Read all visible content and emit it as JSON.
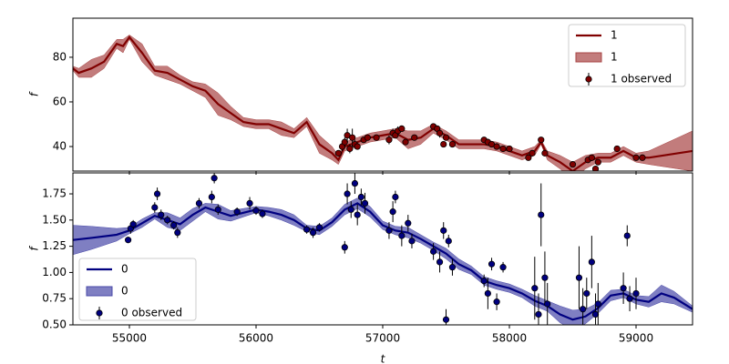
{
  "chart_data": [
    {
      "type": "line",
      "ylabel": "f",
      "legend": "upper right",
      "xlim": [
        54554,
        59446
      ],
      "ylim": [
        29,
        97.5
      ],
      "yticks": [
        40,
        60,
        80
      ],
      "series": [
        {
          "name": "1",
          "kind": "line",
          "color": "#800000",
          "x": [
            54554,
            54600,
            54700,
            54800,
            54900,
            54950,
            55000,
            55100,
            55200,
            55300,
            55400,
            55500,
            55600,
            55700,
            55800,
            55900,
            56000,
            56100,
            56200,
            56300,
            56400,
            56500,
            56600,
            56650,
            56700,
            56800,
            56900,
            57000,
            57100,
            57200,
            57300,
            57400,
            57500,
            57600,
            57800,
            57900,
            58000,
            58100,
            58200,
            58250,
            58300,
            58400,
            58500,
            58600,
            58700,
            58800,
            58900,
            59000,
            59100,
            59446
          ],
          "values": [
            75,
            73,
            75,
            78,
            86,
            85,
            89,
            82,
            74,
            73,
            70,
            67,
            65,
            59,
            55,
            51,
            50,
            50,
            48,
            46,
            51,
            41,
            37,
            34,
            40,
            42,
            44,
            45,
            46,
            43,
            44,
            48,
            45,
            41,
            41,
            40,
            38,
            36,
            38,
            42,
            36,
            33,
            29,
            33,
            35,
            35,
            38,
            35,
            35,
            38
          ]
        },
        {
          "name": "1",
          "kind": "band",
          "color": "#a84545",
          "x": [
            54554,
            54600,
            54700,
            54800,
            54900,
            54950,
            55000,
            55100,
            55200,
            55300,
            55400,
            55500,
            55600,
            55700,
            55800,
            55900,
            56000,
            56100,
            56200,
            56300,
            56400,
            56500,
            56600,
            56650,
            56700,
            56800,
            56900,
            57000,
            57100,
            57200,
            57300,
            57400,
            57500,
            57600,
            57800,
            57900,
            58000,
            58100,
            58200,
            58250,
            58300,
            58400,
            58500,
            58600,
            58700,
            58800,
            58900,
            59000,
            59100,
            59446
          ],
          "lower": [
            74,
            71,
            71,
            75,
            84,
            82,
            88,
            78,
            72,
            70,
            68,
            65,
            62,
            54,
            52,
            49,
            48,
            48,
            45,
            44,
            49,
            37,
            34,
            32,
            38,
            40,
            42,
            43,
            44,
            39,
            41,
            46,
            43,
            39,
            39,
            38,
            36,
            34,
            36,
            41,
            34,
            30,
            25,
            30,
            33,
            33,
            36,
            33,
            32,
            29
          ],
          "upper": [
            76,
            75,
            79,
            81,
            88,
            88,
            90,
            86,
            76,
            76,
            72,
            69,
            68,
            64,
            58,
            53,
            52,
            52,
            51,
            48,
            53,
            45,
            40,
            36,
            42,
            44,
            46,
            47,
            48,
            47,
            47,
            50,
            47,
            43,
            43,
            42,
            40,
            38,
            40,
            43,
            38,
            36,
            33,
            36,
            37,
            37,
            40,
            37,
            38,
            47
          ]
        },
        {
          "name": "1 observed",
          "kind": "errorbar",
          "color": "#800000",
          "x": [
            56650,
            56680,
            56700,
            56720,
            56740,
            56760,
            56780,
            56800,
            56850,
            56880,
            56950,
            57050,
            57080,
            57100,
            57120,
            57150,
            57180,
            57250,
            57400,
            57430,
            57450,
            57480,
            57500,
            57550,
            57800,
            57830,
            57860,
            57900,
            57950,
            58000,
            58150,
            58180,
            58250,
            58280,
            58500,
            58620,
            58650,
            58680,
            58700,
            58850,
            59000,
            59050
          ],
          "values": [
            37,
            40,
            42,
            45,
            39,
            44,
            41,
            40,
            43,
            44,
            44,
            43,
            46,
            45,
            47,
            48,
            42,
            44,
            49,
            48,
            46,
            41,
            44,
            41,
            43,
            42,
            41,
            40,
            39,
            39,
            35,
            37,
            43,
            37,
            32,
            34,
            35,
            30,
            33,
            39,
            35,
            35
          ],
          "errors": [
            1,
            2,
            2,
            3,
            2,
            4,
            2,
            1,
            1,
            1,
            1,
            2,
            2,
            1,
            2,
            1,
            1,
            1,
            1,
            1,
            2,
            1,
            1,
            1,
            1,
            1,
            1,
            1,
            1,
            1,
            1,
            1,
            1,
            1,
            1,
            1,
            1,
            1,
            1,
            1,
            1,
            1
          ]
        }
      ]
    },
    {
      "type": "line",
      "ylabel": "f",
      "xlabel": "t",
      "legend": "lower left",
      "xlim": [
        54554,
        59446
      ],
      "ylim": [
        0.5,
        1.95
      ],
      "xticks": [
        55000,
        56000,
        57000,
        58000,
        59000
      ],
      "yticks": [
        {
          "value": 0.5,
          "label": "0.50"
        },
        0.75,
        {
          "value": 1.0,
          "label": "1.00"
        },
        1.25,
        {
          "value": 1.5,
          "label": "1.50"
        },
        1.75
      ],
      "series": [
        {
          "name": "0",
          "kind": "line",
          "color": "#000080",
          "x": [
            54554,
            54700,
            54900,
            55000,
            55100,
            55200,
            55300,
            55400,
            55500,
            55600,
            55700,
            55800,
            55900,
            56000,
            56100,
            56200,
            56300,
            56400,
            56500,
            56600,
            56700,
            56800,
            56900,
            57000,
            57100,
            57200,
            57300,
            57400,
            57500,
            57600,
            57700,
            57800,
            57900,
            58000,
            58100,
            58200,
            58300,
            58400,
            58500,
            58600,
            58700,
            58800,
            58900,
            59000,
            59100,
            59200,
            59300,
            59446
          ],
          "values": [
            1.31,
            1.33,
            1.36,
            1.4,
            1.47,
            1.54,
            1.5,
            1.46,
            1.55,
            1.62,
            1.58,
            1.54,
            1.57,
            1.6,
            1.58,
            1.55,
            1.5,
            1.42,
            1.4,
            1.48,
            1.6,
            1.66,
            1.58,
            1.45,
            1.4,
            1.38,
            1.32,
            1.25,
            1.18,
            1.08,
            1.02,
            0.92,
            0.88,
            0.85,
            0.8,
            0.73,
            0.68,
            0.6,
            0.55,
            0.58,
            0.66,
            0.78,
            0.8,
            0.74,
            0.72,
            0.8,
            0.76,
            0.65
          ]
        },
        {
          "name": "0",
          "kind": "band",
          "color": "#4848a8",
          "x": [
            54554,
            54700,
            54900,
            55000,
            55100,
            55200,
            55300,
            55400,
            55500,
            55600,
            55700,
            55800,
            55900,
            56000,
            56100,
            56200,
            56300,
            56400,
            56500,
            56600,
            56700,
            56800,
            56900,
            57000,
            57100,
            57200,
            57300,
            57400,
            57500,
            57600,
            57700,
            57800,
            57900,
            58000,
            58100,
            58200,
            58300,
            58400,
            58500,
            58600,
            58700,
            58800,
            58900,
            59000,
            59100,
            59200,
            59300,
            59446
          ],
          "lower": [
            1.17,
            1.22,
            1.3,
            1.37,
            1.43,
            1.51,
            1.43,
            1.4,
            1.49,
            1.58,
            1.51,
            1.49,
            1.53,
            1.57,
            1.54,
            1.5,
            1.45,
            1.39,
            1.36,
            1.44,
            1.55,
            1.61,
            1.53,
            1.41,
            1.36,
            1.33,
            1.28,
            1.21,
            1.13,
            1.03,
            0.98,
            0.88,
            0.84,
            0.81,
            0.76,
            0.68,
            0.63,
            0.52,
            0.46,
            0.51,
            0.61,
            0.73,
            0.76,
            0.7,
            0.67,
            0.72,
            0.7,
            0.62
          ],
          "upper": [
            1.45,
            1.44,
            1.42,
            1.43,
            1.51,
            1.57,
            1.57,
            1.52,
            1.61,
            1.66,
            1.65,
            1.59,
            1.61,
            1.63,
            1.62,
            1.6,
            1.55,
            1.45,
            1.44,
            1.52,
            1.65,
            1.71,
            1.63,
            1.49,
            1.44,
            1.43,
            1.36,
            1.29,
            1.23,
            1.13,
            1.06,
            0.96,
            0.92,
            0.89,
            0.84,
            0.78,
            0.73,
            0.68,
            0.64,
            0.65,
            0.71,
            0.83,
            0.84,
            0.78,
            0.77,
            0.88,
            0.82,
            0.68
          ]
        },
        {
          "name": "0 observed",
          "kind": "errorbar",
          "color": "#000080",
          "x": [
            54990,
            55010,
            55030,
            55200,
            55220,
            55250,
            55300,
            55350,
            55380,
            55550,
            55650,
            55670,
            55700,
            55850,
            55950,
            56000,
            56050,
            56400,
            56450,
            56500,
            56700,
            56720,
            56750,
            56780,
            56800,
            56830,
            56860,
            57050,
            57080,
            57100,
            57150,
            57200,
            57230,
            57400,
            57450,
            57480,
            57500,
            57520,
            57550,
            57800,
            57830,
            57860,
            57900,
            57950,
            58200,
            58230,
            58250,
            58280,
            58300,
            58550,
            58580,
            58610,
            58650,
            58680,
            58700,
            58900,
            58930,
            58950,
            59000
          ],
          "values": [
            1.31,
            1.42,
            1.46,
            1.62,
            1.75,
            1.55,
            1.5,
            1.45,
            1.38,
            1.66,
            1.72,
            1.9,
            1.6,
            1.58,
            1.66,
            1.59,
            1.56,
            1.41,
            1.38,
            1.43,
            1.24,
            1.75,
            1.6,
            1.85,
            1.55,
            1.72,
            1.66,
            1.4,
            1.58,
            1.72,
            1.35,
            1.47,
            1.3,
            1.2,
            1.1,
            1.4,
            0.55,
            1.3,
            1.05,
            0.92,
            0.8,
            1.08,
            0.72,
            1.05,
            0.85,
            0.6,
            1.55,
            0.95,
            0.7,
            0.95,
            0.65,
            0.8,
            1.1,
            0.6,
            0.7,
            0.85,
            1.35,
            0.75,
            0.8
          ],
          "errors": [
            0.03,
            0.05,
            0.04,
            0.05,
            0.06,
            0.05,
            0.04,
            0.04,
            0.05,
            0.05,
            0.06,
            0.05,
            0.05,
            0.04,
            0.06,
            0.04,
            0.04,
            0.04,
            0.05,
            0.04,
            0.06,
            0.1,
            0.08,
            0.1,
            0.1,
            0.08,
            0.1,
            0.08,
            0.1,
            0.06,
            0.1,
            0.08,
            0.07,
            0.08,
            0.1,
            0.08,
            0.1,
            0.06,
            0.08,
            0.06,
            0.15,
            0.06,
            0.08,
            0.05,
            0.3,
            0.2,
            0.3,
            0.25,
            0.2,
            0.3,
            0.2,
            0.15,
            0.25,
            0.2,
            0.2,
            0.15,
            0.1,
            0.12,
            0.15
          ]
        }
      ]
    }
  ]
}
